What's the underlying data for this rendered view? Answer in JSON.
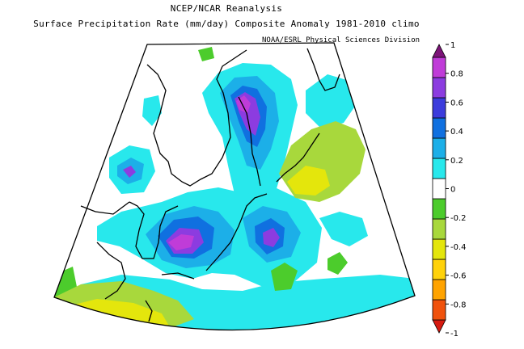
{
  "title": "NCEP/NCAR Reanalysis",
  "subtitle": "Surface Precipitation Rate (mm/day) Composite Anomaly 1981-2010 climo",
  "credit": "NOAA/ESRL Physical Sciences Division",
  "colorbar": {
    "min": -1,
    "max": 1,
    "ticks": [
      "1",
      "0.8",
      "0.6",
      "0.4",
      "0.2",
      "0",
      "-0.2",
      "-0.4",
      "-0.6",
      "-0.8",
      "-1"
    ],
    "bands": [
      "#d61a10",
      "#f0520c",
      "#ffa300",
      "#ffd20a",
      "#e4e60c",
      "#a8d83c",
      "#4ccc2c",
      "#ffffff",
      "#28e8ec",
      "#1cafe8",
      "#1070e0",
      "#3c3cdc",
      "#8c3ce0",
      "#c03cd8",
      "#7c1478"
    ]
  }
}
